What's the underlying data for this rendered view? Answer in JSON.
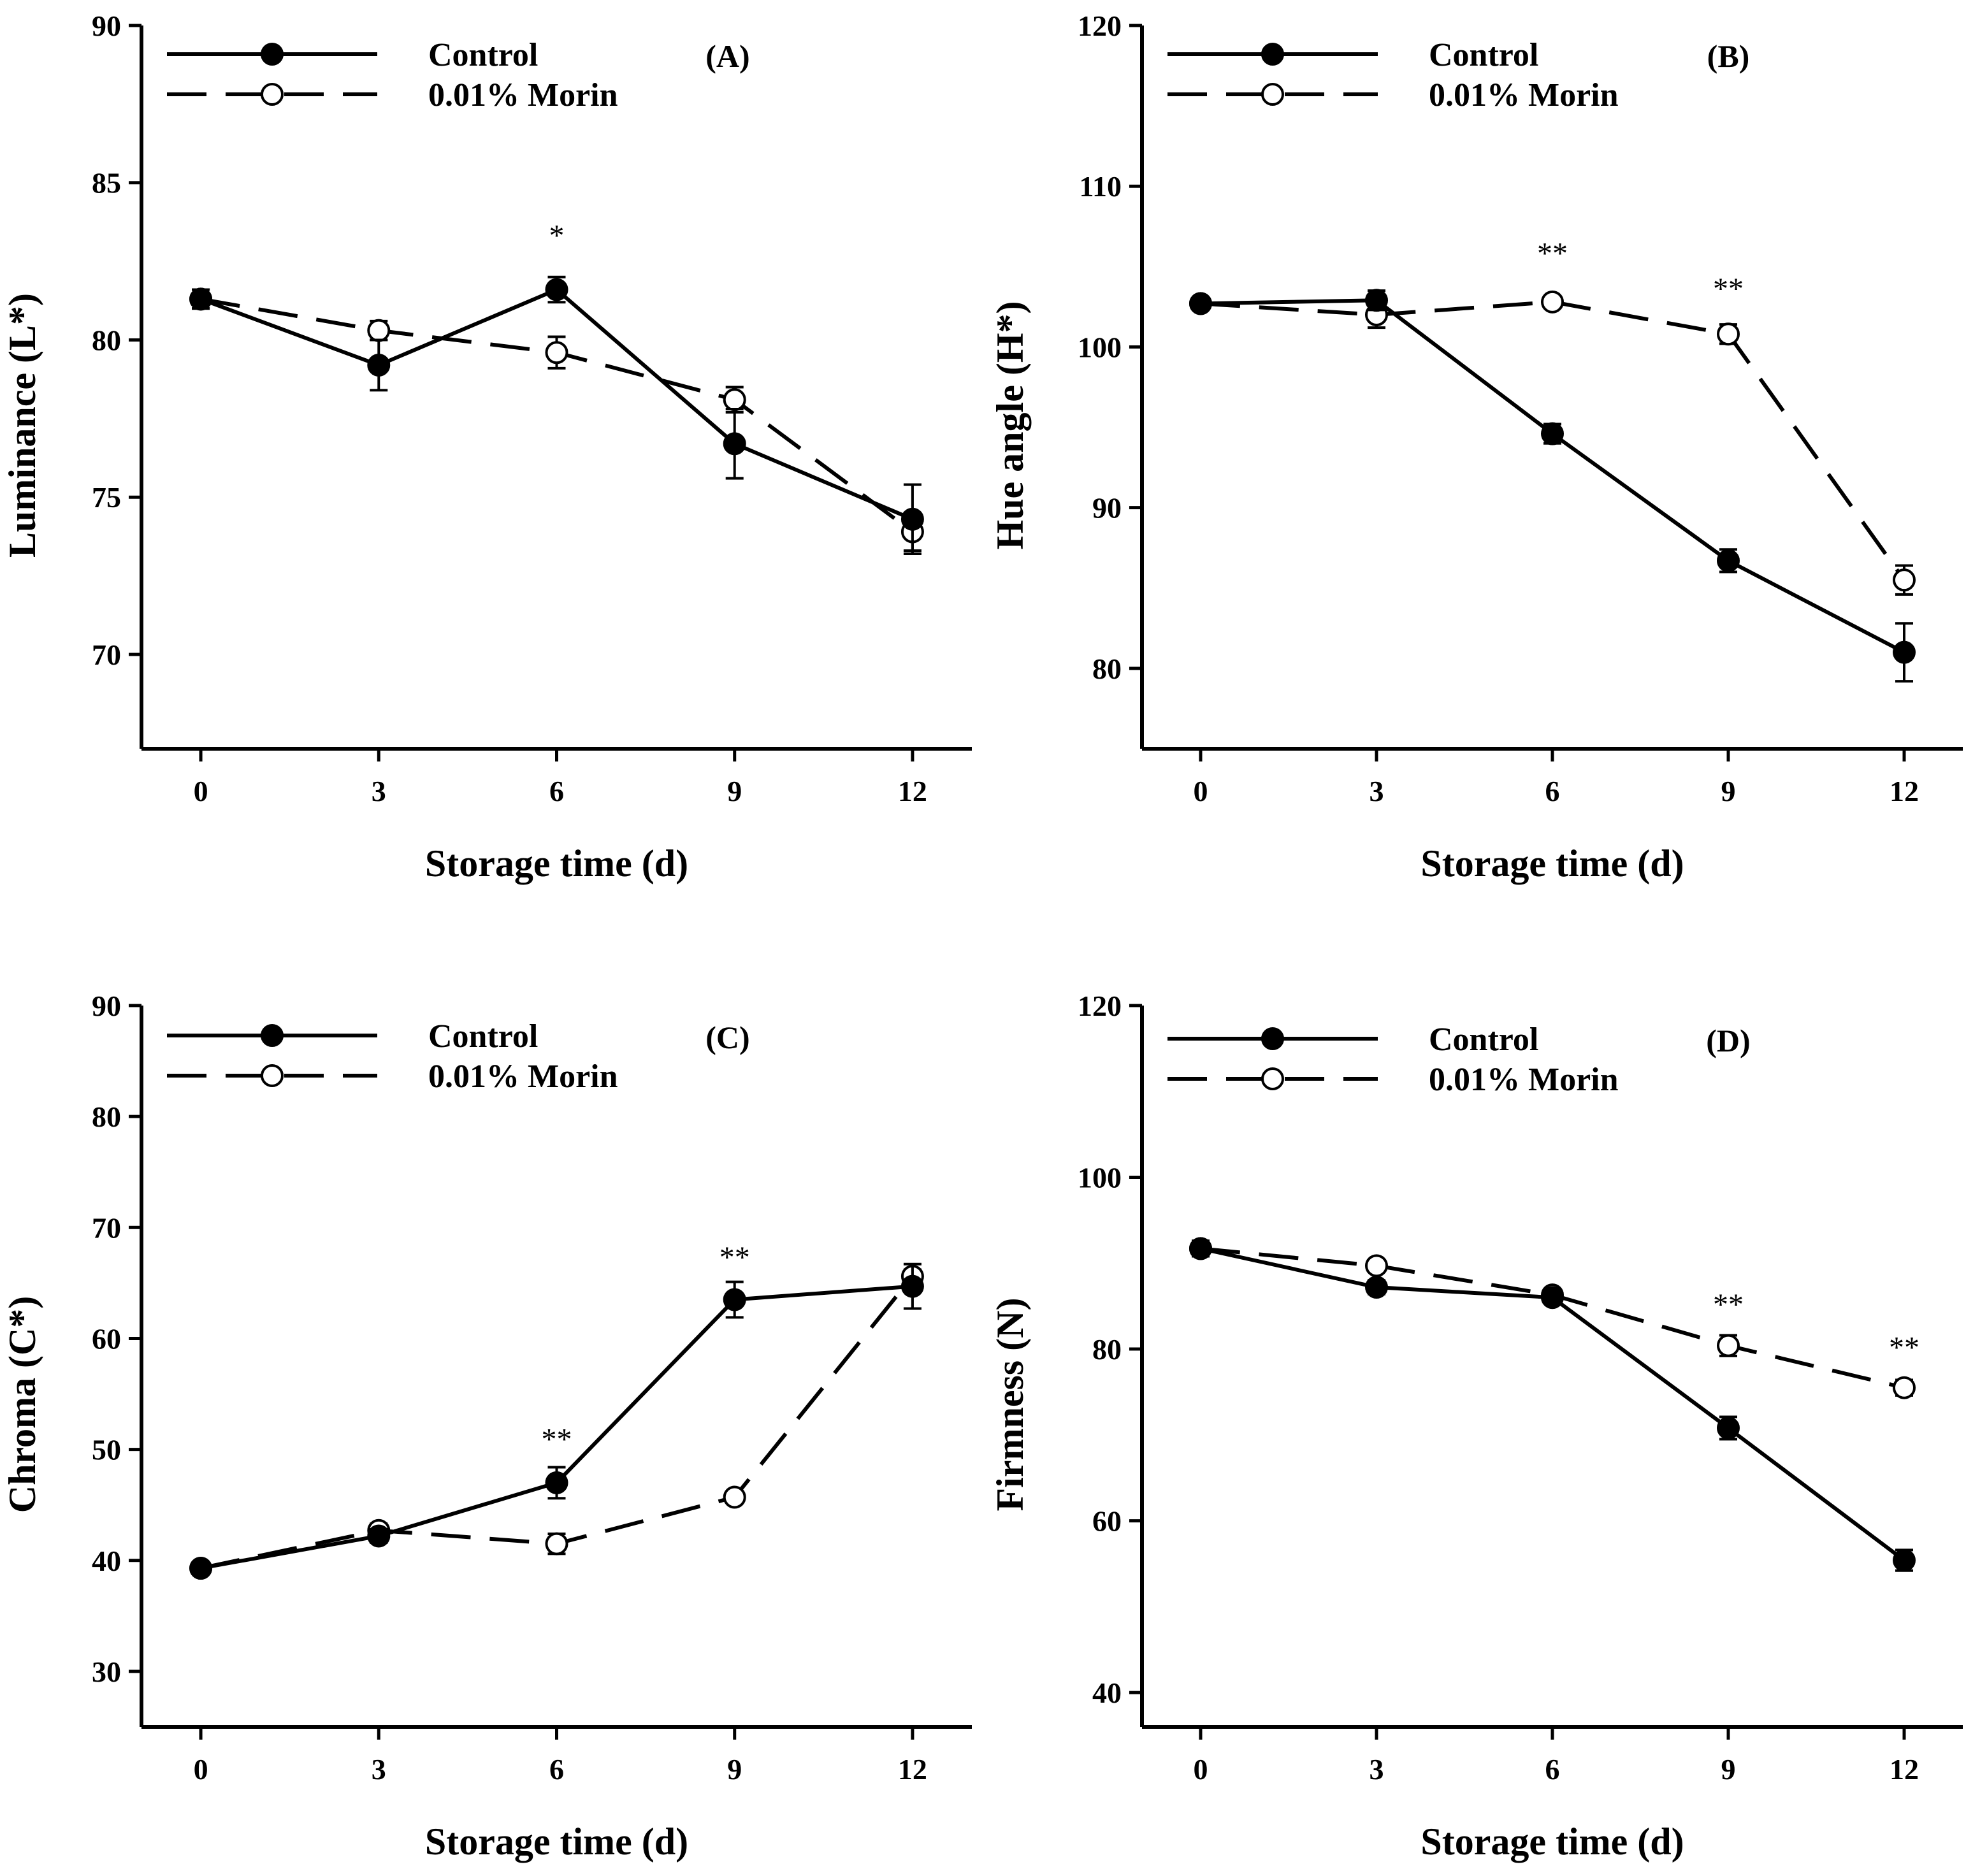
{
  "chart_data": [
    {
      "id": "A",
      "type": "line",
      "panel_label": "(A)",
      "xlabel": "Storage time (d)",
      "ylabel": "Luminance (L*)",
      "x": [
        0,
        3,
        6,
        9,
        12
      ],
      "xlim": [
        -1,
        13
      ],
      "ylim": [
        67,
        90
      ],
      "yticks": [
        70,
        75,
        80,
        85,
        90
      ],
      "legend_position": "top-left",
      "series": [
        {
          "name": "Control",
          "style": "solid",
          "marker": "filled",
          "values": [
            81.3,
            79.2,
            81.6,
            76.7,
            74.3
          ],
          "errors": [
            0.3,
            0.8,
            0.4,
            1.1,
            1.1
          ]
        },
        {
          "name": "0.01% Morin",
          "style": "dashed",
          "marker": "open",
          "values": [
            81.3,
            80.3,
            79.6,
            78.1,
            73.9
          ],
          "errors": [
            0.3,
            0.3,
            0.5,
            0.4,
            0.6
          ]
        }
      ],
      "annotations": [
        {
          "x": 6,
          "text": "*",
          "y": 83.0
        }
      ]
    },
    {
      "id": "B",
      "type": "line",
      "panel_label": "(B)",
      "xlabel": "Storage time (d)",
      "ylabel": "Hue angle (H*)",
      "x": [
        0,
        3,
        6,
        9,
        12
      ],
      "xlim": [
        -1,
        13
      ],
      "ylim": [
        75,
        120
      ],
      "yticks": [
        80,
        90,
        100,
        110,
        120
      ],
      "legend_position": "top-left",
      "series": [
        {
          "name": "Control",
          "style": "solid",
          "marker": "filled",
          "values": [
            102.7,
            102.9,
            94.6,
            86.7,
            81.0
          ],
          "errors": [
            0.3,
            0.6,
            0.6,
            0.7,
            1.8
          ]
        },
        {
          "name": "0.01% Morin",
          "style": "dashed",
          "marker": "open",
          "values": [
            102.7,
            102.0,
            102.8,
            100.8,
            85.5
          ],
          "errors": [
            0.3,
            0.8,
            0.3,
            0.6,
            0.9
          ]
        }
      ],
      "annotations": [
        {
          "x": 6,
          "text": "**",
          "y": 105.2
        },
        {
          "x": 9,
          "text": "**",
          "y": 103.0
        }
      ]
    },
    {
      "id": "C",
      "type": "line",
      "panel_label": "(C)",
      "xlabel": "Storage time (d)",
      "ylabel": "Chroma (C*)",
      "x": [
        0,
        3,
        6,
        9,
        12
      ],
      "xlim": [
        -1,
        13
      ],
      "ylim": [
        25,
        90
      ],
      "yticks": [
        30,
        40,
        50,
        60,
        70,
        80,
        90
      ],
      "legend_position": "top-left",
      "series": [
        {
          "name": "Control",
          "style": "solid",
          "marker": "filled",
          "values": [
            39.3,
            42.2,
            47.0,
            63.5,
            64.7
          ],
          "errors": [
            0.4,
            0.6,
            1.4,
            1.6,
            2.0
          ]
        },
        {
          "name": "0.01% Morin",
          "style": "dashed",
          "marker": "open",
          "values": [
            39.3,
            42.7,
            41.5,
            45.7,
            65.6
          ],
          "errors": [
            0.4,
            0.6,
            0.9,
            0.4,
            0.6
          ]
        }
      ],
      "annotations": [
        {
          "x": 6,
          "text": "**",
          "y": 50.0
        },
        {
          "x": 9,
          "text": "**",
          "y": 66.4
        }
      ]
    },
    {
      "id": "D",
      "type": "line",
      "panel_label": "(D)",
      "xlabel": "Storage time (d)",
      "ylabel": "Firmness (N)",
      "x": [
        0,
        3,
        6,
        9,
        12
      ],
      "xlim": [
        -1,
        13
      ],
      "ylim": [
        36,
        120
      ],
      "yticks": [
        40,
        60,
        80,
        100,
        120
      ],
      "legend_position": "top-left",
      "series": [
        {
          "name": "Control",
          "style": "solid",
          "marker": "filled",
          "values": [
            91.7,
            87.2,
            86.0,
            70.8,
            55.4
          ],
          "errors": [
            0.9,
            0.8,
            0.5,
            1.3,
            1.2
          ]
        },
        {
          "name": "0.01% Morin",
          "style": "dashed",
          "marker": "open",
          "values": [
            91.7,
            89.7,
            86.3,
            80.4,
            75.5
          ],
          "errors": [
            0.9,
            0.7,
            0.5,
            1.2,
            0.9
          ]
        }
      ],
      "legend_labels": [
        "Control",
        "0.01%  Morin"
      ],
      "annotations": [
        {
          "x": 9,
          "text": "**",
          "y": 84.0
        },
        {
          "x": 12,
          "text": "**",
          "y": 79.0
        }
      ]
    }
  ]
}
